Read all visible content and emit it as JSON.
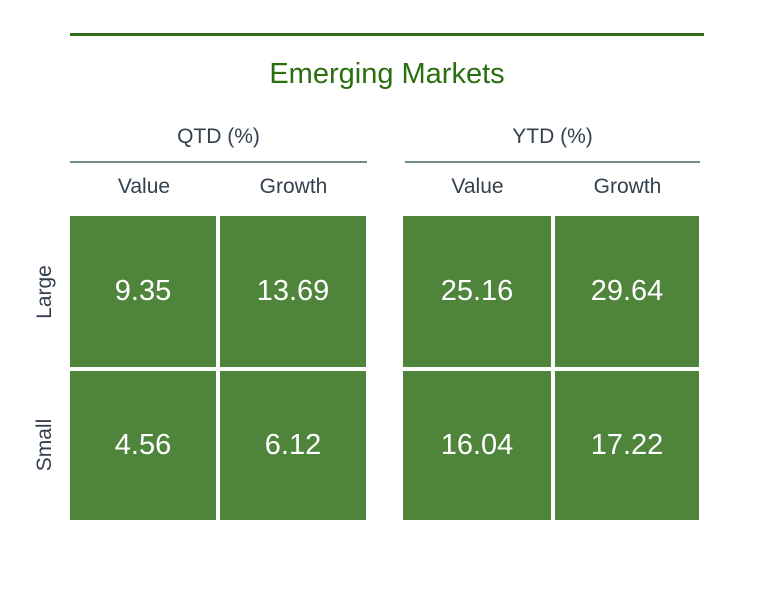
{
  "title": "Emerging Markets",
  "groups": [
    {
      "label": "QTD (%)"
    },
    {
      "label": "YTD (%)"
    }
  ],
  "columns": [
    "Value",
    "Growth"
  ],
  "rows": [
    "Large",
    "Small"
  ],
  "values": {
    "qtd": {
      "large": {
        "value": "9.35",
        "growth": "13.69"
      },
      "small": {
        "value": "4.56",
        "growth": "6.12"
      }
    },
    "ytd": {
      "large": {
        "value": "25.16",
        "growth": "29.64"
      },
      "small": {
        "value": "16.04",
        "growth": "17.22"
      }
    }
  },
  "colors": {
    "accent": "#2a6e10",
    "cell": "#4f843b"
  }
}
